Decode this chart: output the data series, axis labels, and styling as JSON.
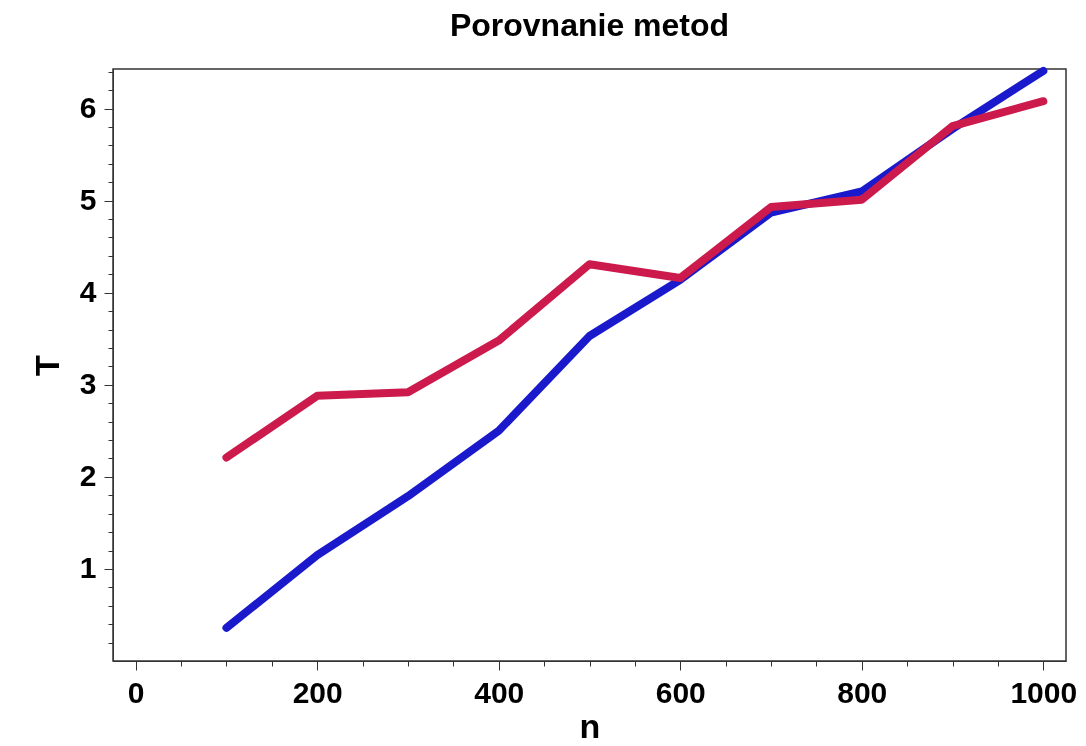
{
  "chart_data": {
    "type": "line",
    "title": "Porovnanie metod",
    "xlabel": "n",
    "ylabel": "T",
    "x": [
      100,
      200,
      300,
      400,
      500,
      600,
      700,
      800,
      900,
      1000
    ],
    "series": [
      {
        "color": "#1a1acc",
        "values": [
          0.36,
          1.15,
          1.79,
          2.5,
          3.53,
          4.14,
          4.87,
          5.1,
          5.78,
          6.41
        ]
      },
      {
        "color": "#cc1a4d",
        "values": [
          2.21,
          2.88,
          2.92,
          3.48,
          4.31,
          4.16,
          4.93,
          5.01,
          5.81,
          6.08
        ]
      }
    ],
    "xlim": [
      -25,
      1025
    ],
    "xticks": [
      0,
      {
        "value": 50,
        "label": null
      },
      {
        "value": 100,
        "label": null
      },
      {
        "value": 150,
        "label": null
      },
      200,
      {
        "value": 250,
        "label": null
      },
      {
        "value": 300,
        "label": null
      },
      {
        "value": 350,
        "label": null
      },
      400,
      {
        "value": 450,
        "label": null
      },
      {
        "value": 500,
        "label": null
      },
      {
        "value": 550,
        "label": null
      },
      600,
      {
        "value": 650,
        "label": null
      },
      {
        "value": 700,
        "label": null
      },
      {
        "value": 750,
        "label": null
      },
      800,
      {
        "value": 850,
        "label": null
      },
      {
        "value": 900,
        "label": null
      },
      {
        "value": 950,
        "label": null
      },
      1000
    ],
    "ylim": [
      0,
      6.43
    ],
    "yticks": [
      {
        "value": 0.2,
        "label": null
      },
      {
        "value": 0.4,
        "label": null
      },
      {
        "value": 0.6,
        "label": null
      },
      {
        "value": 0.8,
        "label": null
      },
      1,
      {
        "value": 1.2,
        "label": null
      },
      {
        "value": 1.4,
        "label": null
      },
      {
        "value": 1.6,
        "label": null
      },
      {
        "value": 1.8,
        "label": null
      },
      2,
      {
        "value": 2.2,
        "label": null
      },
      {
        "value": 2.4,
        "label": null
      },
      {
        "value": 2.6,
        "label": null
      },
      {
        "value": 2.8,
        "label": null
      },
      3,
      {
        "value": 3.2,
        "label": null
      },
      {
        "value": 3.4,
        "label": null
      },
      {
        "value": 3.6,
        "label": null
      },
      {
        "value": 3.8,
        "label": null
      },
      4,
      {
        "value": 4.2,
        "label": null
      },
      {
        "value": 4.4,
        "label": null
      },
      {
        "value": 4.6,
        "label": null
      },
      {
        "value": 4.8,
        "label": null
      },
      5,
      {
        "value": 5.2,
        "label": null
      },
      {
        "value": 5.4,
        "label": null
      },
      {
        "value": 5.6,
        "label": null
      },
      {
        "value": 5.8,
        "label": null
      },
      6,
      {
        "value": 6.2,
        "label": null
      },
      {
        "value": 6.4,
        "label": null
      }
    ],
    "marker": "none",
    "line_style": "solid"
  }
}
